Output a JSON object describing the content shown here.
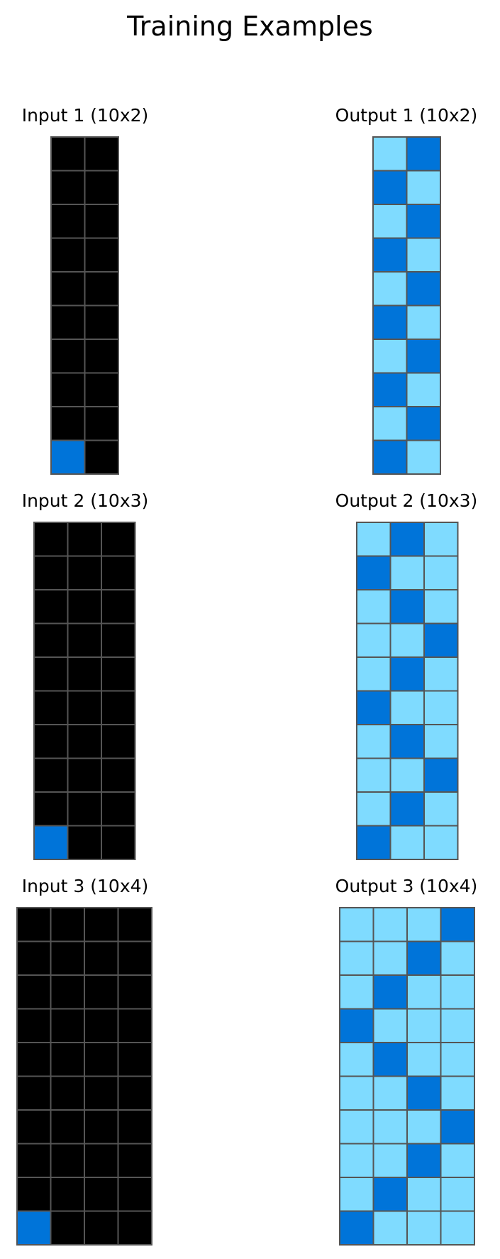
{
  "title": "Training Examples",
  "colors": {
    "0": "#000000",
    "1": "#0074D9",
    "8": "#7FDBFF"
  },
  "examples": [
    {
      "input_label": "Input 1 (10x2)",
      "output_label": "Output 1 (10x2)",
      "input": [
        [
          0,
          0
        ],
        [
          0,
          0
        ],
        [
          0,
          0
        ],
        [
          0,
          0
        ],
        [
          0,
          0
        ],
        [
          0,
          0
        ],
        [
          0,
          0
        ],
        [
          0,
          0
        ],
        [
          0,
          0
        ],
        [
          1,
          0
        ]
      ],
      "output": [
        [
          8,
          1
        ],
        [
          1,
          8
        ],
        [
          8,
          1
        ],
        [
          1,
          8
        ],
        [
          8,
          1
        ],
        [
          1,
          8
        ],
        [
          8,
          1
        ],
        [
          1,
          8
        ],
        [
          8,
          1
        ],
        [
          1,
          8
        ]
      ]
    },
    {
      "input_label": "Input 2 (10x3)",
      "output_label": "Output 2 (10x3)",
      "input": [
        [
          0,
          0,
          0
        ],
        [
          0,
          0,
          0
        ],
        [
          0,
          0,
          0
        ],
        [
          0,
          0,
          0
        ],
        [
          0,
          0,
          0
        ],
        [
          0,
          0,
          0
        ],
        [
          0,
          0,
          0
        ],
        [
          0,
          0,
          0
        ],
        [
          0,
          0,
          0
        ],
        [
          1,
          0,
          0
        ]
      ],
      "output": [
        [
          8,
          1,
          8
        ],
        [
          1,
          8,
          8
        ],
        [
          8,
          1,
          8
        ],
        [
          8,
          8,
          1
        ],
        [
          8,
          1,
          8
        ],
        [
          1,
          8,
          8
        ],
        [
          8,
          1,
          8
        ],
        [
          8,
          8,
          1
        ],
        [
          8,
          1,
          8
        ],
        [
          1,
          8,
          8
        ]
      ]
    },
    {
      "input_label": "Input 3 (10x4)",
      "output_label": "Output 3 (10x4)",
      "input": [
        [
          0,
          0,
          0,
          0
        ],
        [
          0,
          0,
          0,
          0
        ],
        [
          0,
          0,
          0,
          0
        ],
        [
          0,
          0,
          0,
          0
        ],
        [
          0,
          0,
          0,
          0
        ],
        [
          0,
          0,
          0,
          0
        ],
        [
          0,
          0,
          0,
          0
        ],
        [
          0,
          0,
          0,
          0
        ],
        [
          0,
          0,
          0,
          0
        ],
        [
          1,
          0,
          0,
          0
        ]
      ],
      "output": [
        [
          8,
          8,
          8,
          1
        ],
        [
          8,
          8,
          1,
          8
        ],
        [
          8,
          1,
          8,
          8
        ],
        [
          1,
          8,
          8,
          8
        ],
        [
          8,
          1,
          8,
          8
        ],
        [
          8,
          8,
          1,
          8
        ],
        [
          8,
          8,
          8,
          1
        ],
        [
          8,
          8,
          1,
          8
        ],
        [
          8,
          1,
          8,
          8
        ],
        [
          1,
          8,
          8,
          8
        ]
      ]
    }
  ]
}
